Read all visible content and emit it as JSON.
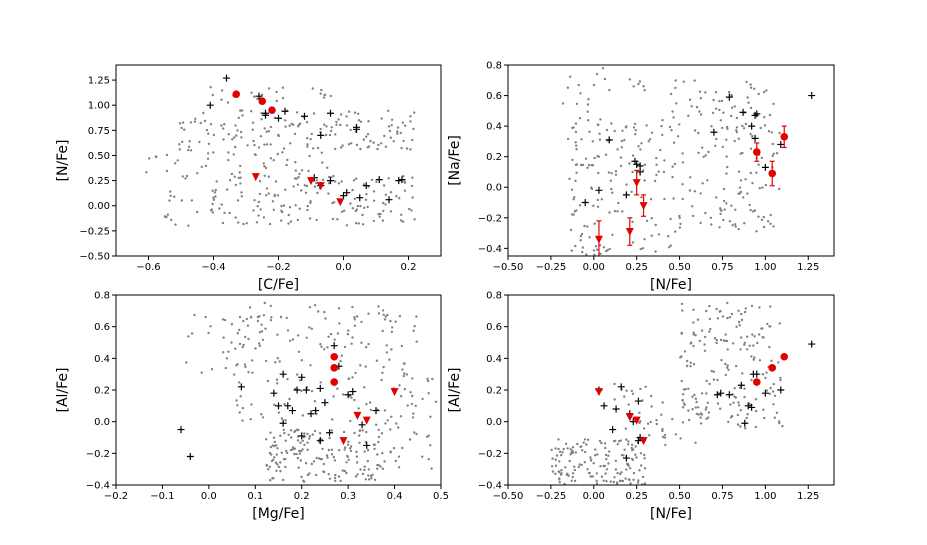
{
  "chart_data": [
    {
      "id": "cfe_nfe",
      "type": "scatter",
      "title": "",
      "xlabel": "[C/Fe]",
      "ylabel": "[N/Fe]",
      "xlim": [
        -0.7,
        0.3
      ],
      "ylim": [
        -0.5,
        1.4
      ],
      "xticks": [
        "−0.6",
        "−0.4",
        "−0.2",
        "0.0",
        "0.2"
      ],
      "yticks": [
        "−0.50",
        "−0.25",
        "0.00",
        "0.25",
        "0.50",
        "0.75",
        "1.00",
        "1.25"
      ],
      "xtick_values": [
        -0.6,
        -0.4,
        -0.2,
        0.0,
        0.2
      ],
      "ytick_values": [
        -0.5,
        -0.25,
        0.0,
        0.25,
        0.5,
        0.75,
        1.0,
        1.25
      ],
      "background_seed": 11,
      "background_clusters": [
        {
          "n": 150,
          "x": [
            -0.52,
            0.22
          ],
          "y": [
            0.55,
            0.95
          ]
        },
        {
          "n": 170,
          "x": [
            -0.55,
            0.22
          ],
          "y": [
            -0.2,
            0.3
          ]
        },
        {
          "n": 40,
          "x": [
            -0.62,
            -0.05
          ],
          "y": [
            0.3,
            0.55
          ]
        },
        {
          "n": 25,
          "x": [
            -0.45,
            0.0
          ],
          "y": [
            1.0,
            1.2
          ]
        }
      ],
      "series": [
        {
          "name": "crosses",
          "marker": "cross",
          "color": "#000000",
          "points": [
            [
              -0.36,
              1.27
            ],
            [
              -0.41,
              1.0
            ],
            [
              -0.26,
              1.09
            ],
            [
              -0.24,
              0.92
            ],
            [
              -0.24,
              0.9
            ],
            [
              -0.2,
              0.87
            ],
            [
              -0.18,
              0.94
            ],
            [
              -0.12,
              0.89
            ],
            [
              -0.07,
              0.7
            ],
            [
              -0.04,
              0.92
            ],
            [
              0.04,
              0.78
            ],
            [
              0.04,
              0.76
            ],
            [
              -0.09,
              0.28
            ],
            [
              -0.07,
              0.2
            ],
            [
              -0.04,
              0.25
            ],
            [
              0.0,
              0.1
            ],
            [
              0.01,
              0.13
            ],
            [
              0.05,
              0.08
            ],
            [
              0.07,
              0.2
            ],
            [
              0.11,
              0.26
            ],
            [
              0.14,
              0.06
            ],
            [
              0.17,
              0.25
            ],
            [
              0.18,
              0.26
            ]
          ]
        },
        {
          "name": "circles",
          "marker": "circle",
          "color": "#e30000",
          "points": [
            [
              -0.33,
              1.11
            ],
            [
              -0.25,
              1.04
            ],
            [
              -0.22,
              0.95
            ]
          ]
        },
        {
          "name": "triangles",
          "marker": "triangle-down",
          "color": "#e30000",
          "points": [
            [
              -0.27,
              0.29
            ],
            [
              -0.1,
              0.25
            ],
            [
              -0.07,
              0.2
            ],
            [
              -0.01,
              0.04
            ]
          ]
        }
      ]
    },
    {
      "id": "nfe_nafe",
      "type": "scatter",
      "title": "",
      "xlabel": "[N/Fe]",
      "ylabel": "[Na/Fe]",
      "xlim": [
        -0.5,
        1.4
      ],
      "ylim": [
        -0.45,
        0.8
      ],
      "xticks": [
        "−0.50",
        "−0.25",
        "0.00",
        "0.25",
        "0.50",
        "0.75",
        "1.00",
        "1.25"
      ],
      "yticks": [
        "−0.4",
        "−0.2",
        "0.0",
        "0.2",
        "0.4",
        "0.6",
        "0.8"
      ],
      "xtick_values": [
        -0.5,
        -0.25,
        0.0,
        0.25,
        0.5,
        0.75,
        1.0,
        1.25
      ],
      "ytick_values": [
        -0.4,
        -0.2,
        0.0,
        0.2,
        0.4,
        0.6,
        0.8
      ],
      "background_seed": 23,
      "background_clusters": [
        {
          "n": 140,
          "x": [
            -0.15,
            0.45
          ],
          "y": [
            -0.45,
            0.45
          ]
        },
        {
          "n": 170,
          "x": [
            0.45,
            1.1
          ],
          "y": [
            -0.3,
            0.7
          ]
        },
        {
          "n": 30,
          "x": [
            -0.2,
            0.3
          ],
          "y": [
            0.3,
            0.78
          ]
        }
      ],
      "series": [
        {
          "name": "crosses",
          "marker": "cross",
          "color": "#000000",
          "points": [
            [
              -0.05,
              -0.1
            ],
            [
              0.03,
              -0.02
            ],
            [
              0.09,
              0.31
            ],
            [
              0.19,
              -0.05
            ],
            [
              0.24,
              0.17
            ],
            [
              0.25,
              0.15
            ],
            [
              0.27,
              0.14
            ],
            [
              0.27,
              0.1
            ],
            [
              0.7,
              0.36
            ],
            [
              0.79,
              0.59
            ],
            [
              0.87,
              0.49
            ],
            [
              0.92,
              0.4
            ],
            [
              0.94,
              0.47
            ],
            [
              0.95,
              0.48
            ],
            [
              0.94,
              0.32
            ],
            [
              1.0,
              0.13
            ],
            [
              1.09,
              0.28
            ],
            [
              1.27,
              0.6
            ]
          ]
        },
        {
          "name": "circles",
          "marker": "circle",
          "color": "#e30000",
          "points": [
            [
              0.95,
              0.23
            ],
            [
              1.04,
              0.09
            ],
            [
              1.11,
              0.33
            ]
          ],
          "yerr": [
            0.06,
            0.08,
            0.07
          ]
        },
        {
          "name": "triangles",
          "marker": "triangle-down",
          "color": "#e30000",
          "points": [
            [
              0.03,
              -0.34
            ],
            [
              0.21,
              -0.29
            ],
            [
              0.25,
              0.03
            ],
            [
              0.29,
              -0.12
            ]
          ],
          "yerr": [
            0.12,
            0.09,
            0.08,
            0.07
          ]
        }
      ]
    },
    {
      "id": "mgfe_alfe",
      "type": "scatter",
      "title": "",
      "xlabel": "[Mg/Fe]",
      "ylabel": "[Al/Fe]",
      "xlim": [
        -0.2,
        0.5
      ],
      "ylim": [
        -0.4,
        0.8
      ],
      "xticks": [
        "−0.2",
        "−0.1",
        "0.0",
        "0.1",
        "0.2",
        "0.3",
        "0.4",
        "0.5"
      ],
      "yticks": [
        "−0.4",
        "−0.2",
        "0.0",
        "0.2",
        "0.4",
        "0.6",
        "0.8"
      ],
      "xtick_values": [
        -0.2,
        -0.1,
        0.0,
        0.1,
        0.2,
        0.3,
        0.4,
        0.5
      ],
      "ytick_values": [
        -0.4,
        -0.2,
        0.0,
        0.2,
        0.4,
        0.6,
        0.8
      ],
      "background_seed": 37,
      "background_clusters": [
        {
          "n": 170,
          "x": [
            0.12,
            0.38
          ],
          "y": [
            -0.38,
            -0.05
          ]
        },
        {
          "n": 170,
          "x": [
            0.05,
            0.45
          ],
          "y": [
            0.0,
            0.75
          ]
        },
        {
          "n": 25,
          "x": [
            -0.05,
            0.08
          ],
          "y": [
            0.3,
            0.7
          ]
        },
        {
          "n": 40,
          "x": [
            0.36,
            0.49
          ],
          "y": [
            -0.3,
            0.35
          ]
        }
      ],
      "series": [
        {
          "name": "crosses",
          "marker": "cross",
          "color": "#000000",
          "points": [
            [
              -0.06,
              -0.05
            ],
            [
              -0.04,
              -0.22
            ],
            [
              0.07,
              0.22
            ],
            [
              0.14,
              0.18
            ],
            [
              0.15,
              0.1
            ],
            [
              0.16,
              0.3
            ],
            [
              0.17,
              0.1
            ],
            [
              0.18,
              0.07
            ],
            [
              0.19,
              0.2
            ],
            [
              0.2,
              0.28
            ],
            [
              0.21,
              0.2
            ],
            [
              0.22,
              0.05
            ],
            [
              0.23,
              0.07
            ],
            [
              0.24,
              0.21
            ],
            [
              0.25,
              0.12
            ],
            [
              0.26,
              -0.07
            ],
            [
              0.27,
              0.48
            ],
            [
              0.28,
              0.35
            ],
            [
              0.3,
              0.17
            ],
            [
              0.31,
              0.19
            ],
            [
              0.33,
              -0.02
            ],
            [
              0.34,
              -0.15
            ],
            [
              0.36,
              0.07
            ],
            [
              0.24,
              -0.12
            ],
            [
              0.2,
              -0.09
            ],
            [
              0.16,
              -0.01
            ]
          ]
        },
        {
          "name": "circles",
          "marker": "circle",
          "color": "#e30000",
          "points": [
            [
              0.27,
              0.41
            ],
            [
              0.27,
              0.34
            ],
            [
              0.27,
              0.25
            ]
          ]
        },
        {
          "name": "triangles",
          "marker": "triangle-down",
          "color": "#e30000",
          "points": [
            [
              0.29,
              -0.12
            ],
            [
              0.32,
              0.04
            ],
            [
              0.34,
              0.01
            ],
            [
              0.4,
              0.19
            ]
          ]
        }
      ]
    },
    {
      "id": "nfe_alfe",
      "type": "scatter",
      "title": "",
      "xlabel": "[N/Fe]",
      "ylabel": "[Al/Fe]",
      "xlim": [
        -0.5,
        1.4
      ],
      "ylim": [
        -0.4,
        0.8
      ],
      "xticks": [
        "−0.50",
        "−0.25",
        "0.00",
        "0.25",
        "0.50",
        "0.75",
        "1.00",
        "1.25"
      ],
      "yticks": [
        "−0.4",
        "−0.2",
        "0.0",
        "0.2",
        "0.4",
        "0.6",
        "0.8"
      ],
      "xtick_values": [
        -0.5,
        -0.25,
        0.0,
        0.25,
        0.5,
        0.75,
        1.0,
        1.25
      ],
      "ytick_values": [
        -0.4,
        -0.2,
        0.0,
        0.2,
        0.4,
        0.6,
        0.8
      ],
      "background_seed": 53,
      "background_clusters": [
        {
          "n": 150,
          "x": [
            -0.25,
            0.3
          ],
          "y": [
            -0.4,
            -0.1
          ]
        },
        {
          "n": 180,
          "x": [
            0.5,
            1.1
          ],
          "y": [
            -0.05,
            0.75
          ]
        },
        {
          "n": 45,
          "x": [
            0.1,
            0.6
          ],
          "y": [
            -0.15,
            0.25
          ]
        }
      ],
      "series": [
        {
          "name": "crosses",
          "marker": "cross",
          "color": "#000000",
          "points": [
            [
              0.03,
              0.2
            ],
            [
              0.06,
              0.1
            ],
            [
              0.11,
              -0.05
            ],
            [
              0.13,
              0.08
            ],
            [
              0.16,
              0.22
            ],
            [
              0.19,
              -0.23
            ],
            [
              0.21,
              0.05
            ],
            [
              0.23,
              0.0
            ],
            [
              0.26,
              0.13
            ],
            [
              0.26,
              -0.12
            ],
            [
              0.27,
              -0.1
            ],
            [
              0.72,
              0.17
            ],
            [
              0.74,
              0.18
            ],
            [
              0.79,
              0.17
            ],
            [
              0.86,
              0.23
            ],
            [
              0.88,
              -0.01
            ],
            [
              0.9,
              0.1
            ],
            [
              0.92,
              0.09
            ],
            [
              0.93,
              0.3
            ],
            [
              0.95,
              0.3
            ],
            [
              1.0,
              0.18
            ],
            [
              1.09,
              0.2
            ],
            [
              1.27,
              0.49
            ]
          ]
        },
        {
          "name": "circles",
          "marker": "circle",
          "color": "#e30000",
          "points": [
            [
              0.95,
              0.25
            ],
            [
              1.04,
              0.34
            ],
            [
              1.11,
              0.41
            ]
          ]
        },
        {
          "name": "triangles",
          "marker": "triangle-down",
          "color": "#e30000",
          "points": [
            [
              0.03,
              0.19
            ],
            [
              0.21,
              0.03
            ],
            [
              0.25,
              0.01
            ],
            [
              0.29,
              -0.12
            ]
          ]
        }
      ]
    }
  ]
}
